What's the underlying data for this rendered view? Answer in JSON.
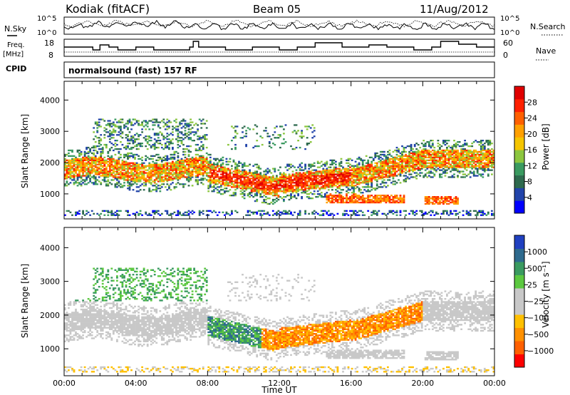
{
  "header": {
    "station": "Kodiak (fitACF)",
    "beam": "Beam 05",
    "date": "11/Aug/2012"
  },
  "top_panels": {
    "nsky_label": "N.Sky",
    "freq_label_1": "Freq.",
    "freq_label_2": "[MHz]",
    "cpid_label": "CPID",
    "nsearch_label": "N.Search",
    "nave_label": "Nave",
    "noise_ticks": [
      "10^5",
      "10^0"
    ],
    "freq_ticks": [
      "18",
      "8"
    ],
    "nave_ticks": [
      "60",
      "0"
    ],
    "cpid_text": "normalsound (fast) 157 RF"
  },
  "chart_data": [
    {
      "type": "heatmap",
      "name": "power",
      "ylabel": "Slant Range [km]",
      "xlabel": "",
      "yticks": [
        "1000",
        "2000",
        "3000",
        "4000"
      ],
      "ylim": [
        200,
        4600
      ],
      "xlim": [
        0,
        24
      ],
      "colorbar": {
        "label": "Power [dB]",
        "ticks": [
          "4",
          "8",
          "12",
          "16",
          "20",
          "24",
          "28"
        ],
        "range": [
          0,
          30
        ],
        "colors": [
          "#0000ff",
          "#2244aa",
          "#2e6a4e",
          "#3a9a60",
          "#8cc63f",
          "#f5c500",
          "#ffa000",
          "#ff6000",
          "#ff2000",
          "#e00000"
        ]
      }
    },
    {
      "type": "heatmap",
      "name": "velocity",
      "ylabel": "Slant Range [km]",
      "xlabel": "Time UT",
      "yticks": [
        "1000",
        "2000",
        "3000",
        "4000"
      ],
      "ylim": [
        200,
        4600
      ],
      "xlim": [
        0,
        24
      ],
      "xticks": [
        "00:00",
        "04:00",
        "08:00",
        "12:00",
        "16:00",
        "20:00",
        "00:00"
      ],
      "colorbar": {
        "label": "Velocity [m s⁻¹]",
        "ticks": [
          "1000",
          "500",
          "25",
          "−25",
          "−100",
          "−500",
          "−1000"
        ],
        "colors": [
          "#2040c0",
          "#2e6a8e",
          "#3a9a60",
          "#5cc840",
          "#c8c8c8",
          "#c8c8c8",
          "#ffc000",
          "#ff9000",
          "#ff6000",
          "#ff0000"
        ]
      }
    }
  ]
}
